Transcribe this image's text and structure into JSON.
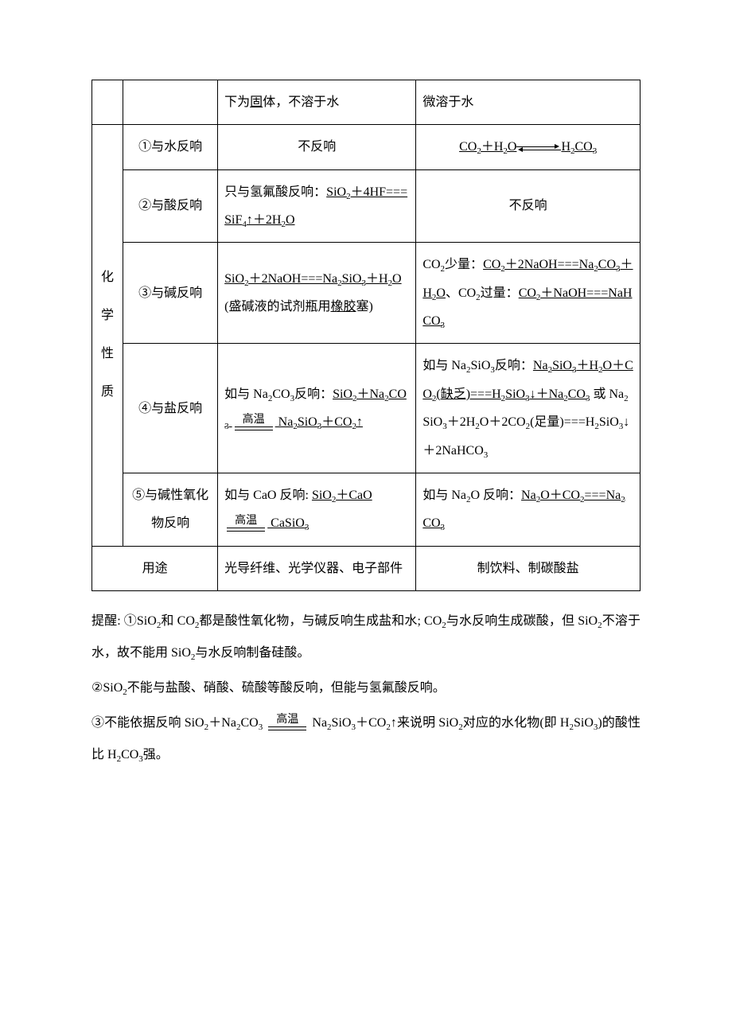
{
  "table": {
    "row0": {
      "col_c": "下为固体，不溶于水",
      "col_c_u": "固",
      "col_d": "微溶于水"
    },
    "vertical_label": "化学性质",
    "rows": [
      {
        "label": "①与水反响",
        "c_center": true,
        "c": "不反响",
        "d_type": "eq",
        "d_left": "CO",
        "d_left_sub": "2",
        "d_mid": "＋H",
        "d_mid_sub": "2",
        "d_mid2": "O",
        "d_right": "H",
        "d_right_sub": "2",
        "d_right2": "CO",
        "d_right_sub2": "3"
      },
      {
        "label": "②与酸反响",
        "c_html": "只与氢氟酸反响：<span class=\"u\">SiO<sub>2</sub>＋4HF===SiF<sub>4</sub>↑＋2H<sub>2</sub>O</span>",
        "d_center": true,
        "d": "不反响"
      },
      {
        "label": "③与碱反响",
        "c_html": "<span class=\"u\">SiO<sub>2</sub>＋2NaOH===Na<sub>2</sub>SiO<sub>3</sub>＋H<sub>2</sub>O</span>(盛碱液的试剂瓶用<span class=\"u\">橡胶</span>塞)",
        "d_html": "CO<sub>2</sub>少量：<span class=\"u\">CO<sub>2</sub>＋2NaOH===Na<sub>2</sub>CO<sub>3</sub>＋H<sub>2</sub>O</span>、CO<sub>2</sub>过量：<span class=\"u\">CO<sub>2</sub>＋NaOH===NaHCO<sub>3</sub></span>"
      },
      {
        "label": "④与盐反响",
        "c_html": "如与 Na<sub>2</sub>CO<sub>3</sub>反响：<span class=\"u\">SiO<sub>2</sub>＋Na<sub>2</sub>CO<sub>3</sub> </span><span class=\"hightemp\"><span class=\"ht-top\">高温</span><span class=\"ht-mid\"></span><span class=\"ht-bot\"></span></span><span class=\"u\"> Na<sub>2</sub>SiO<sub>3</sub>＋CO<sub>2</sub>↑</span>",
        "d_html": "如与 Na<sub>2</sub>SiO<sub>3</sub>反响：<span class=\"u\">Na<sub>2</sub>SiO<sub>3</sub>＋H<sub>2</sub>O＋CO<sub>2</sub>(缺乏)===H<sub>2</sub>SiO<sub>3</sub>↓＋Na<sub>2</sub>CO<sub>3</sub></span> 或 Na<sub>2</sub>SiO<sub>3</sub>＋2H<sub>2</sub>O＋2CO<sub>2</sub>(足量)===H<sub>2</sub>SiO<sub>3</sub>↓＋2NaHCO<sub>3</sub>"
      },
      {
        "label": "⑤与碱性氧化物反响",
        "c_html": "如与 CaO 反响: <span class=\"u\">SiO<sub>2</sub>＋CaO </span><span class=\"hightemp\"><span class=\"ht-top\">高温</span><span class=\"ht-mid\"></span><span class=\"ht-bot\"></span></span><span class=\"u\"> CaSiO<sub>3</sub></span>",
        "d_html": "如与 Na<sub>2</sub>O 反响：<span class=\"u\">Na<sub>2</sub>O＋CO<sub>2</sub>===Na<sub>2</sub>CO<sub>3</sub></span>"
      }
    ],
    "uses": {
      "label": "用途",
      "c": "光导纤维、光学仪器、电子部件",
      "d": "制饮料、制碳酸盐"
    }
  },
  "paragraphs": [
    "提醒: ①SiO<sub>2</sub>和 CO<sub>2</sub>都是酸性氧化物，与碱反响生成盐和水; CO<sub>2</sub>与水反响生成碳酸，但 SiO<sub>2</sub>不溶于水，故不能用 SiO<sub>2</sub>与水反响制备硅酸。",
    "②SiO<sub>2</sub>不能与盐酸、硝酸、硫酸等酸反响，但能与氢氟酸反响。",
    "③不能依据反响 SiO<sub>2</sub>＋Na<sub>2</sub>CO<sub>3</sub> <span class=\"hightemp\"><span class=\"ht-top\">高温</span><span class=\"ht-mid\"></span><span class=\"ht-bot\"></span></span> Na<sub>2</sub>SiO<sub>3</sub>＋CO<sub>2</sub>↑来说明 SiO<sub>2</sub>对应的水化物(即 H<sub>2</sub>SiO<sub>3</sub>)的酸性比 H<sub>2</sub>CO<sub>3</sub>强。"
  ]
}
